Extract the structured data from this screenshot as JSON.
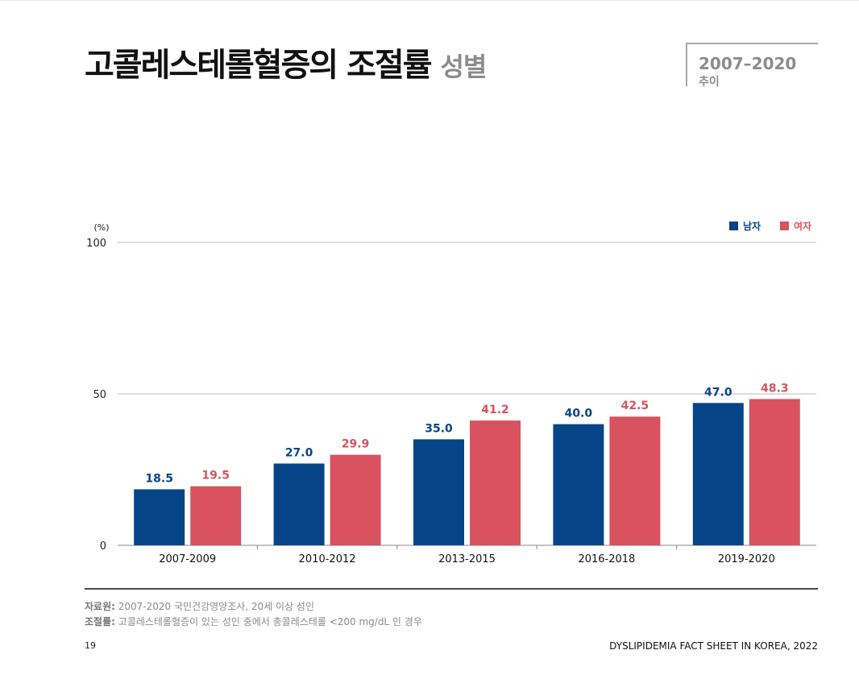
{
  "page": {
    "title": "고콜레스테롤혈증의 조절률",
    "title_sub": "성별",
    "period_range": "2007–2020",
    "period_label": "추이"
  },
  "colors": {
    "male": "#074487",
    "female": "#d8535f",
    "grid": "#bdbdbd",
    "axis": "#888888"
  },
  "chart_data": {
    "type": "bar",
    "ylabel": "(%)",
    "ylim": [
      0,
      100
    ],
    "yticks": [
      0,
      50,
      100
    ],
    "grid": true,
    "legend_position": "top-right",
    "categories": [
      "2007-2009",
      "2010-2012",
      "2013-2015",
      "2016-2018",
      "2019-2020"
    ],
    "series": [
      {
        "name": "남자",
        "color": "#074487",
        "values": [
          18.5,
          27.0,
          35.0,
          40.0,
          47.0
        ],
        "labels": [
          "18.5",
          "27.0",
          "35.0",
          "40.0",
          "47.0"
        ]
      },
      {
        "name": "여자",
        "color": "#d8535f",
        "values": [
          19.5,
          29.9,
          41.2,
          42.5,
          48.3
        ],
        "labels": [
          "19.5",
          "29.9",
          "41.2",
          "42.5",
          "48.3"
        ]
      }
    ]
  },
  "notes": {
    "source_label": "자료원:",
    "source_text": " 2007-2020 국민건강영양조사, 20세 이상 성인",
    "definition_label": "조절률:",
    "definition_text": " 고콜레스테롤혈증이 있는 성인 중에서 총콜레스테롤 <200 mg/dL 인 경우"
  },
  "footer": {
    "page_number": "19",
    "publication": "DYSLIPIDEMIA FACT SHEET IN KOREA, 2022"
  }
}
